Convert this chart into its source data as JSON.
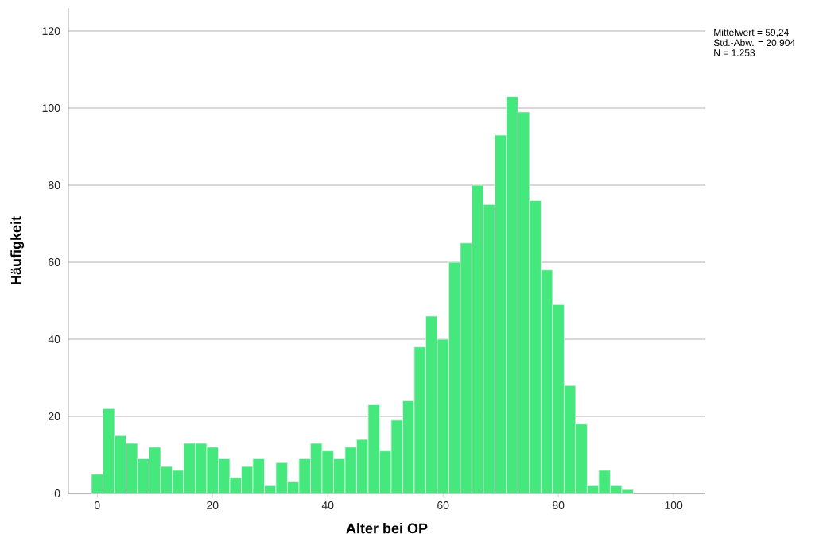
{
  "chart_data": {
    "type": "histogram",
    "xlabel": "Alter bei OP",
    "ylabel": "Häufigkeit",
    "annotations": [
      "Mittelwert = 59,24",
      "Std.-Abw. = 20,904",
      "N = 1.253"
    ],
    "bins": [
      -1,
      1,
      3,
      5,
      7,
      9,
      11,
      13,
      15,
      17,
      19,
      21,
      23,
      25,
      27,
      29,
      31,
      33,
      35,
      37,
      39,
      41,
      43,
      45,
      47,
      49,
      51,
      53,
      55,
      57,
      59,
      61,
      63,
      65,
      67,
      69,
      71,
      73,
      75,
      77,
      79,
      81,
      83,
      85,
      87,
      89,
      91,
      93
    ],
    "values": [
      5,
      22,
      15,
      13,
      9,
      12,
      7,
      6,
      13,
      13,
      12,
      9,
      4,
      7,
      9,
      2,
      8,
      3,
      9,
      13,
      11,
      9,
      12,
      14,
      23,
      11,
      19,
      24,
      38,
      46,
      40,
      60,
      65,
      80,
      75,
      93,
      103,
      99,
      76,
      58,
      49,
      28,
      18,
      2,
      6,
      2,
      1
    ],
    "color": "#44e87c",
    "xlim": [
      -5,
      105.5
    ],
    "ylim": [
      0,
      126
    ],
    "xticks": [
      0,
      20,
      40,
      60,
      80,
      100
    ],
    "yticks": [
      0,
      20,
      40,
      60,
      80,
      100,
      120
    ],
    "grid": "y"
  }
}
